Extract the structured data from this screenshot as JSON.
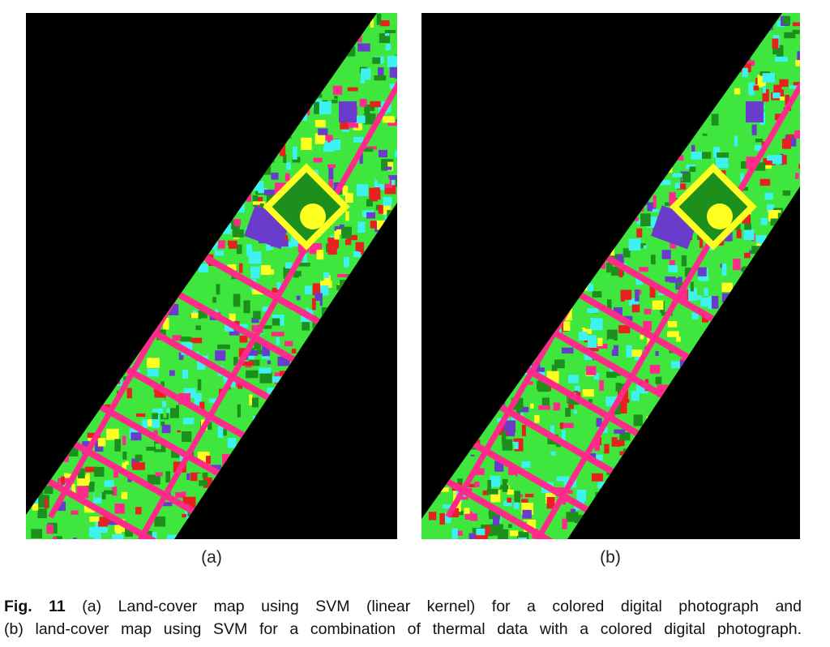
{
  "panels": [
    {
      "label": "(a)"
    },
    {
      "label": "(b)"
    }
  ],
  "caption": {
    "label": "Fig. 11",
    "lines": [
      "(a) Land-cover map using SVM (linear kernel) for a colored digital photograph and",
      "(b) land-cover map using SVM for a combination of thermal data with a colored digital photograph."
    ]
  }
}
